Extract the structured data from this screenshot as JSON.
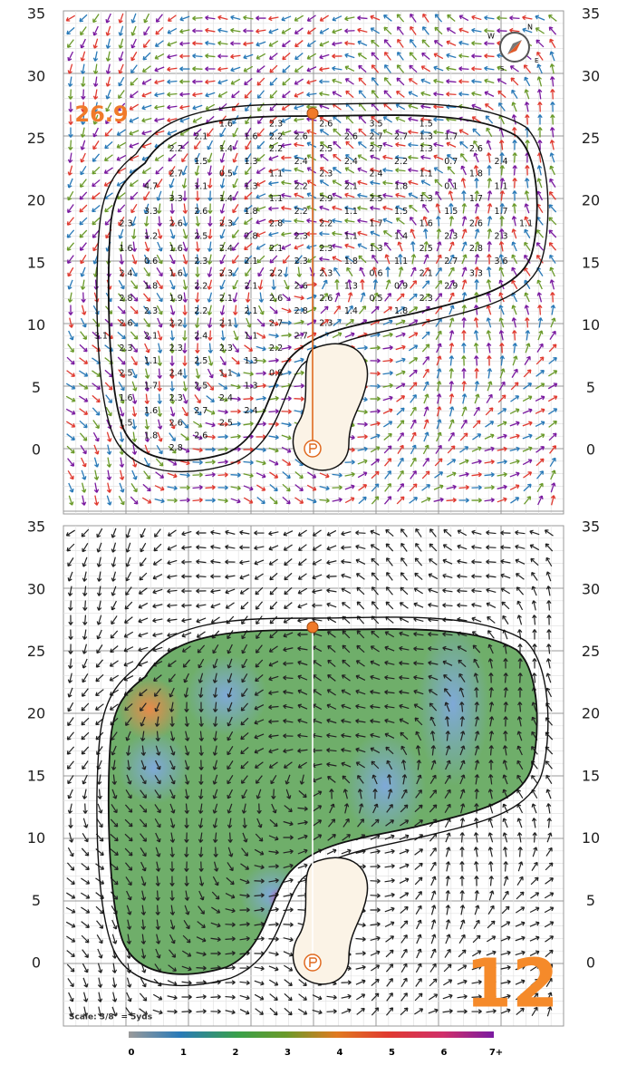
{
  "yardage_labels": [
    35,
    30,
    25,
    20,
    15,
    10,
    5,
    0
  ],
  "pin_distance": "26.9",
  "hole_number": "12",
  "scale": "Scale: 3/8\" = 5yds",
  "compass": [
    "N",
    "E",
    "S",
    "W"
  ],
  "slope_legend": [
    "0",
    "1",
    "2",
    "3",
    "4",
    "5",
    "6",
    "7+"
  ],
  "slope_rows": [
    [
      null,
      null,
      null,
      null,
      null,
      null,
      1.6,
      null,
      2.3,
      null,
      2.6,
      null,
      3.5,
      null,
      1.5,
      null,
      null,
      null,
      null
    ],
    [
      null,
      null,
      null,
      null,
      null,
      2.1,
      null,
      1.6,
      2.2,
      2.6,
      null,
      2.6,
      2.7,
      2.7,
      1.3,
      1.7,
      null,
      null,
      null
    ],
    [
      null,
      null,
      null,
      null,
      2.2,
      null,
      1.4,
      null,
      2.2,
      null,
      2.5,
      null,
      2.7,
      null,
      1.3,
      null,
      2.6,
      null,
      null
    ],
    [
      null,
      null,
      null,
      null,
      null,
      1.5,
      null,
      1.3,
      null,
      2.4,
      null,
      2.4,
      null,
      2.2,
      null,
      0.7,
      null,
      2.4,
      null
    ],
    [
      null,
      null,
      null,
      null,
      2.7,
      null,
      0.5,
      null,
      1.1,
      null,
      2.3,
      null,
      2.4,
      null,
      1.1,
      null,
      1.8,
      null,
      null
    ],
    [
      null,
      null,
      null,
      4.7,
      null,
      1.1,
      null,
      1.3,
      null,
      2.2,
      null,
      2.1,
      null,
      1.8,
      null,
      0.1,
      null,
      1.1,
      null
    ],
    [
      null,
      null,
      null,
      null,
      3.3,
      null,
      1.4,
      null,
      1.1,
      null,
      2.9,
      null,
      2.5,
      null,
      1.3,
      null,
      1.7,
      null,
      null
    ],
    [
      null,
      null,
      null,
      3.3,
      null,
      2.6,
      null,
      1.8,
      null,
      2.2,
      null,
      1.1,
      null,
      1.5,
      null,
      1.5,
      null,
      1.7,
      null
    ],
    [
      null,
      null,
      2.3,
      null,
      2.6,
      null,
      2.3,
      null,
      2.8,
      null,
      2.2,
      null,
      1.7,
      null,
      1.6,
      null,
      2.6,
      null,
      1.1
    ],
    [
      null,
      null,
      null,
      1.2,
      null,
      2.5,
      null,
      2.8,
      null,
      2.3,
      null,
      1.1,
      null,
      1.4,
      null,
      2.3,
      null,
      2.3,
      null
    ],
    [
      null,
      null,
      1.6,
      null,
      1.6,
      null,
      2.4,
      null,
      2.1,
      null,
      2.3,
      null,
      1.3,
      null,
      2.5,
      null,
      2.8,
      null,
      null
    ],
    [
      null,
      null,
      null,
      0.6,
      null,
      2.3,
      null,
      2.1,
      null,
      2.3,
      null,
      1.8,
      null,
      1.1,
      null,
      2.7,
      null,
      3.6,
      null
    ],
    [
      null,
      null,
      2.4,
      null,
      1.6,
      null,
      2.3,
      null,
      2.2,
      null,
      2.3,
      null,
      0.6,
      null,
      2.1,
      null,
      3.3,
      null,
      null
    ],
    [
      null,
      null,
      null,
      1.8,
      null,
      2.2,
      null,
      2.1,
      null,
      2.6,
      null,
      1.3,
      null,
      0.9,
      null,
      2.9,
      null,
      null,
      null
    ],
    [
      null,
      null,
      2.8,
      null,
      1.9,
      null,
      2.1,
      null,
      2.6,
      null,
      2.6,
      null,
      0.5,
      null,
      2.3,
      null,
      null,
      null,
      null
    ],
    [
      null,
      null,
      null,
      2.3,
      null,
      2.2,
      null,
      2.1,
      null,
      2.8,
      null,
      1.4,
      null,
      1.8,
      null,
      null,
      null,
      null,
      null
    ],
    [
      null,
      null,
      2.6,
      null,
      2.2,
      null,
      2.1,
      null,
      2.7,
      null,
      2.3,
      null,
      null,
      null,
      null,
      null,
      null,
      null,
      null
    ],
    [
      null,
      3.1,
      null,
      2.1,
      null,
      2.4,
      null,
      1.1,
      null,
      2.7,
      null,
      null,
      null,
      null,
      null,
      null,
      null,
      null,
      null
    ],
    [
      null,
      null,
      2.3,
      null,
      2.3,
      null,
      2.3,
      null,
      2.2,
      null,
      null,
      null,
      null,
      null,
      null,
      null,
      null,
      null,
      null
    ],
    [
      null,
      null,
      null,
      1.1,
      null,
      2.5,
      null,
      1.3,
      null,
      null,
      null,
      null,
      null,
      null,
      null,
      null,
      null,
      null,
      null
    ],
    [
      null,
      null,
      2.5,
      null,
      2.4,
      null,
      1.1,
      null,
      0.8,
      null,
      null,
      null,
      null,
      null,
      null,
      null,
      null,
      null,
      null
    ],
    [
      null,
      null,
      null,
      1.7,
      null,
      2.5,
      null,
      1.3,
      null,
      null,
      null,
      null,
      null,
      null,
      null,
      null,
      null,
      null,
      null
    ],
    [
      null,
      null,
      1.6,
      null,
      2.3,
      null,
      2.4,
      null,
      null,
      null,
      null,
      null,
      null,
      null,
      null,
      null,
      null,
      null,
      null
    ],
    [
      null,
      null,
      null,
      1.6,
      null,
      2.7,
      null,
      2.4,
      null,
      null,
      null,
      null,
      null,
      null,
      null,
      null,
      null,
      null,
      null
    ],
    [
      null,
      null,
      1.5,
      null,
      2.6,
      null,
      2.5,
      null,
      null,
      null,
      null,
      null,
      null,
      null,
      null,
      null,
      null,
      null,
      null
    ],
    [
      null,
      null,
      null,
      1.8,
      null,
      2.6,
      null,
      null,
      null,
      null,
      null,
      null,
      null,
      null,
      null,
      null,
      null,
      null,
      null
    ],
    [
      null,
      null,
      null,
      null,
      2.8,
      null,
      null,
      null,
      null,
      null,
      null,
      null,
      null,
      null,
      null,
      null,
      null,
      null,
      null
    ]
  ]
}
